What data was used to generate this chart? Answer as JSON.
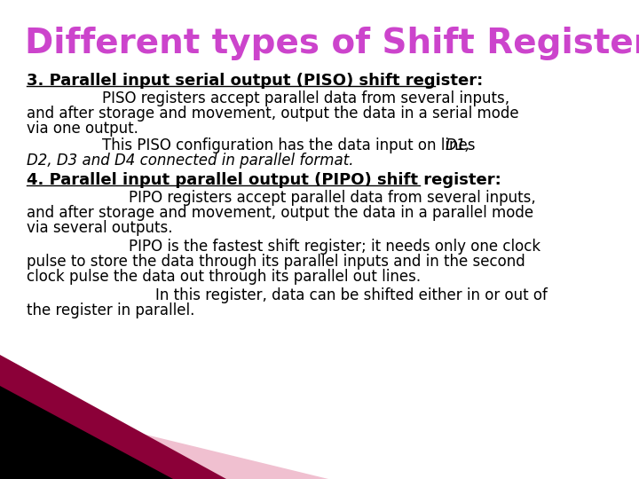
{
  "title": "Different types of Shift Register:",
  "title_color": "#cc44cc",
  "title_fontsize": 28,
  "bg_color": "#ffffff",
  "heading3": "3. Parallel input serial output (PISO) shift register:",
  "heading4": "4. Parallel input parallel output (PIPO) shift register:",
  "heading_color": "#000000",
  "heading_fontsize": 13,
  "body_fontsize": 12,
  "body_color": "#000000",
  "para1_line1": "PISO registers accept parallel data from several inputs,",
  "para1_line2": "and after storage and movement, output the data in a serial mode",
  "para1_line3": "via one output.",
  "para2_line1": "This PISO configuration has the data input on lines ",
  "para2_italic": "D1,",
  "para2_line2_italic": "D2, D3 and D4 connected in parallel format.",
  "para3_line1": "PIPO registers accept parallel data from several inputs,",
  "para3_line2": "and after storage and movement, output the data in a parallel mode",
  "para3_line3": "via several outputs.",
  "para4_line1": "PIPO is the fastest shift register; it needs only one clock",
  "para4_line2": "pulse to store the data through its parallel inputs and in the second",
  "para4_line3": "clock pulse the data out through its parallel out lines.",
  "para5_line1": "In this register, data can be shifted either in or out of",
  "para5_line2": "the register in parallel.",
  "decor_dark": "#8b0038",
  "decor_black": "#000000",
  "decor_light": "#f0c0d0"
}
